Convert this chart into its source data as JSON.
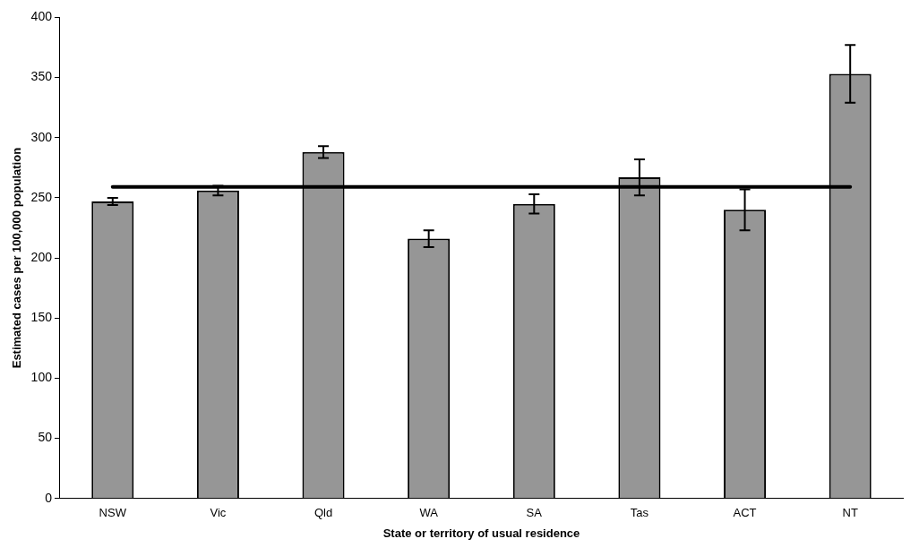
{
  "chart_data": {
    "type": "bar",
    "xlabel": "State or territory of usual residence",
    "ylabel": "Estimated cases per 100,000 population",
    "categories": [
      "NSW",
      "Vic",
      "Qld",
      "WA",
      "SA",
      "Tas",
      "ACT",
      "NT"
    ],
    "values": [
      247,
      256,
      288,
      216,
      245,
      267,
      240,
      353
    ],
    "errors": [
      3,
      4,
      5,
      7,
      8,
      15,
      17,
      24
    ],
    "color": "#969696",
    "ylim": [
      0,
      400
    ],
    "yticks": [
      0,
      50,
      100,
      150,
      200,
      250,
      300,
      350,
      400
    ],
    "ref_lines": [
      {
        "axis": "y",
        "value": 259,
        "color": "#000000"
      }
    ],
    "grid": false,
    "legend": false
  }
}
